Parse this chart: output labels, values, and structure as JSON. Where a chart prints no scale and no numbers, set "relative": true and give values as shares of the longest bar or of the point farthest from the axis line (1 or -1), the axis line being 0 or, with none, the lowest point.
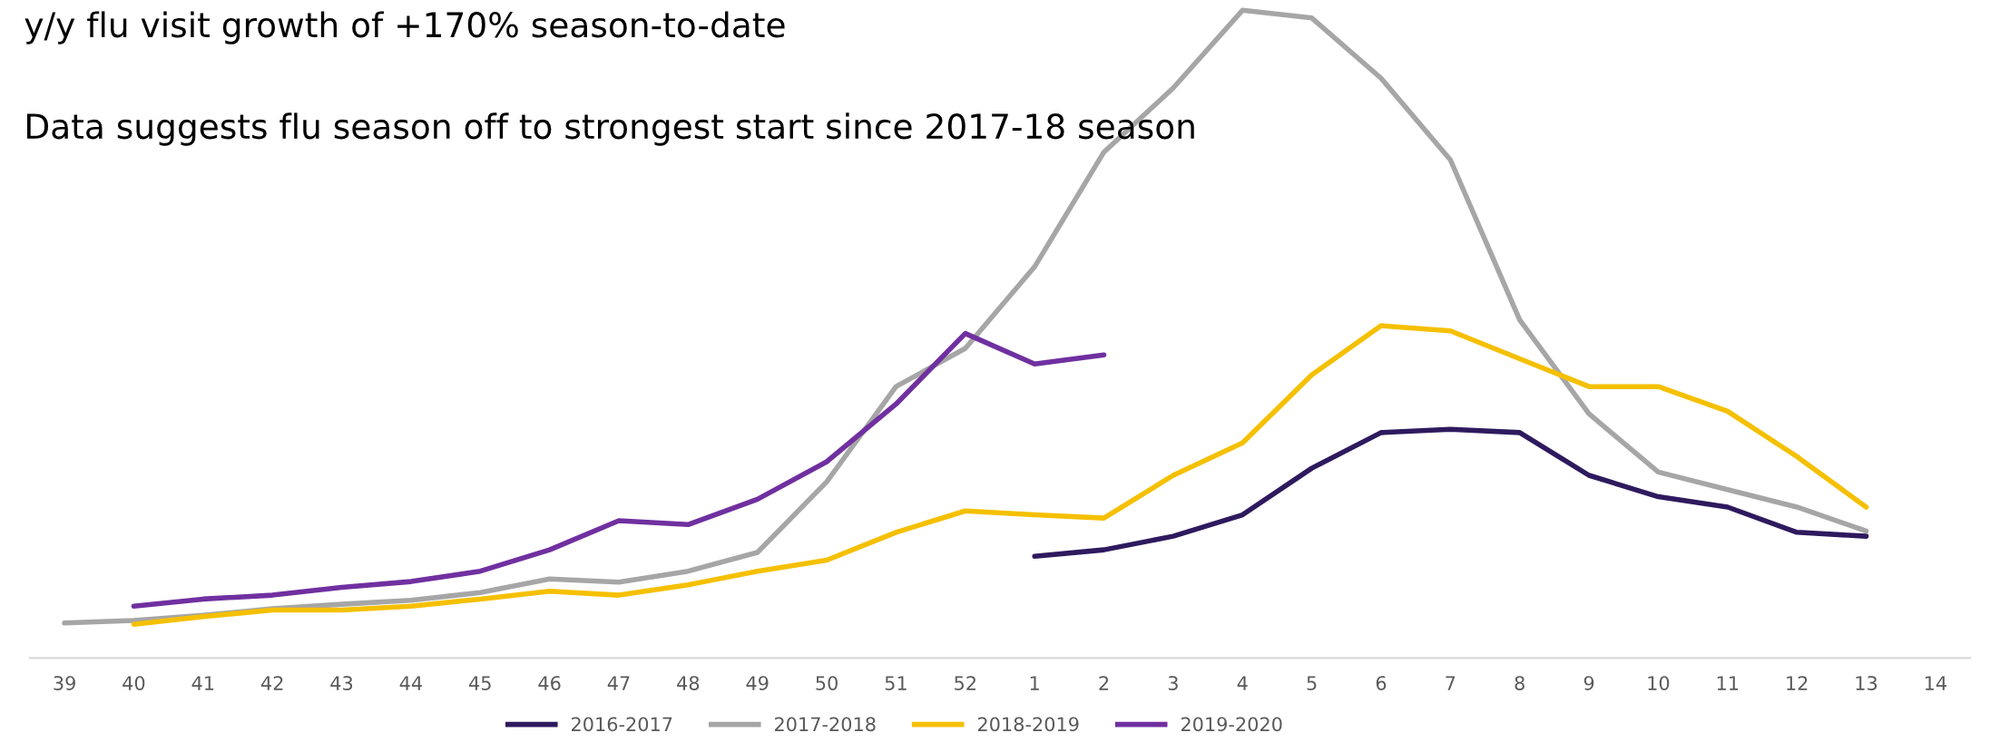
{
  "chart_data": {
    "type": "line",
    "relative": true,
    "tick_labels": "x",
    "grid": false,
    "legend": "bottom",
    "marker": "none",
    "line_style": "solid",
    "annotations": [
      "y/y flu visit growth of +170% season-to-date",
      "Data suggests flu season off to strongest start since 2017-18 season"
    ],
    "categories": [
      "39",
      "40",
      "41",
      "42",
      "43",
      "44",
      "45",
      "46",
      "47",
      "48",
      "49",
      "50",
      "51",
      "52",
      "1",
      "2",
      "3",
      "4",
      "5",
      "6",
      "7",
      "8",
      "9",
      "10",
      "11",
      "12",
      "13",
      "14"
    ],
    "series": [
      {
        "name": "2016-2017",
        "color": "#2e1a5e",
        "values": [
          null,
          null,
          null,
          null,
          null,
          null,
          null,
          null,
          null,
          null,
          null,
          null,
          null,
          null,
          0.157,
          0.167,
          0.188,
          0.221,
          0.293,
          0.348,
          0.353,
          0.348,
          0.282,
          0.249,
          0.233,
          0.194,
          0.188,
          null
        ]
      },
      {
        "name": "2017-2018",
        "color": "#a6a6a6",
        "values": [
          0.054,
          0.058,
          0.066,
          0.076,
          0.083,
          0.089,
          0.101,
          0.122,
          0.117,
          0.134,
          0.163,
          0.272,
          0.419,
          0.478,
          0.604,
          0.781,
          0.88,
          1,
          0.988,
          0.895,
          0.769,
          0.522,
          0.377,
          0.287,
          0.26,
          0.233,
          0.196,
          null
        ]
      },
      {
        "name": "2018-2019",
        "color": "#f5c000",
        "values": [
          null,
          0.052,
          0.064,
          0.074,
          0.074,
          0.08,
          0.091,
          0.103,
          0.097,
          0.113,
          0.134,
          0.151,
          0.194,
          0.227,
          0.221,
          0.216,
          0.282,
          0.332,
          0.437,
          0.513,
          0.505,
          0.462,
          0.419,
          0.419,
          0.381,
          0.311,
          0.233,
          null
        ]
      },
      {
        "name": "2019-2020",
        "color": "#7030a0",
        "values": [
          null,
          0.08,
          0.091,
          0.097,
          0.109,
          0.118,
          0.134,
          0.167,
          0.212,
          0.206,
          0.245,
          0.303,
          0.392,
          0.501,
          0.454,
          0.468,
          null,
          null,
          null,
          null,
          null,
          null,
          null,
          null,
          null,
          null,
          null,
          null
        ]
      }
    ]
  }
}
